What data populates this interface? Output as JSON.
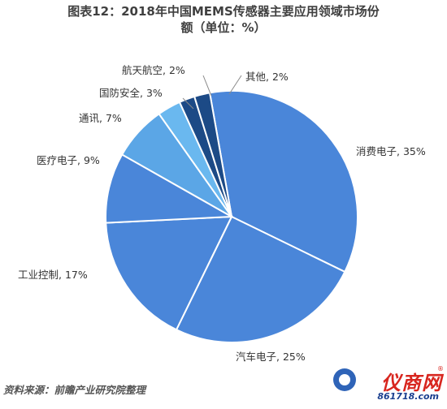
{
  "title": {
    "line1": "图表12：2018年中国MEMS传感器主要应用领域市场份",
    "line2": "额（单位：%）"
  },
  "chart_data": {
    "type": "pie",
    "title": "图表12：2018年中国MEMS传感器主要应用领域市场份额（单位：%）",
    "unit": "%",
    "slices": [
      {
        "label": "消费电子, 35%",
        "name": "消费电子",
        "value": 35,
        "color": "#4a86d9"
      },
      {
        "label": "汽车电子, 25%",
        "name": "汽车电子",
        "value": 25,
        "color": "#4a86d9"
      },
      {
        "label": "工业控制, 17%",
        "name": "工业控制",
        "value": 17,
        "color": "#4a86d9"
      },
      {
        "label": "医疗电子, 9%",
        "name": "医疗电子",
        "value": 9,
        "color": "#4a86d9"
      },
      {
        "label": "通讯, 7%",
        "name": "通讯",
        "value": 7,
        "color": "#5ba6e6"
      },
      {
        "label": "国防安全, 3%",
        "name": "国防安全",
        "value": 3,
        "color": "#6ab8ef"
      },
      {
        "label": "航天航空, 2%",
        "name": "航天航空",
        "value": 2,
        "color": "#1c4a86"
      },
      {
        "label": "其他, 2%",
        "name": "其他",
        "value": 2,
        "color": "#1c4a86"
      }
    ]
  },
  "footer": {
    "source": "资料来源：前瞻产业研究院整理"
  },
  "logo": {
    "brand": "仪商网",
    "domain": "861718.com",
    "reg": "®"
  }
}
